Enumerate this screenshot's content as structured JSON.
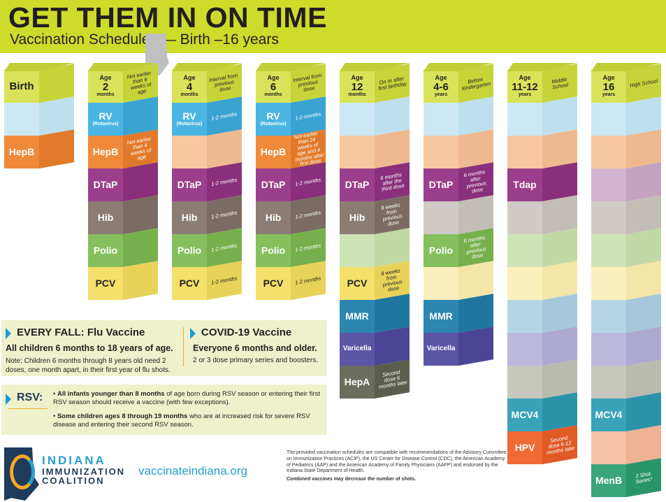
{
  "header": {
    "title": "GET THEM IN ON TIME",
    "subtitle": "Vaccination Schedules — Birth –16 years"
  },
  "columns": [
    {
      "head": {
        "lines": [
          "Birth"
        ],
        "note": ""
      },
      "cells": [
        {
          "label": "",
          "sub": "",
          "note": ""
        },
        {
          "label": "HepB",
          "sub": "",
          "note": ""
        }
      ]
    },
    {
      "head": {
        "lines": [
          "Age",
          "2",
          "months"
        ],
        "note": "Not earlier than 6 weeks of age"
      },
      "cells": [
        {
          "label": "RV",
          "sub": "(Rotavirus)",
          "note": ""
        },
        {
          "label": "HepB",
          "sub": "",
          "note": "Not earlier than 4 weeks of age"
        },
        {
          "label": "DTaP",
          "sub": "",
          "note": ""
        },
        {
          "label": "Hib",
          "sub": "",
          "note": ""
        },
        {
          "label": "Polio",
          "sub": "",
          "note": ""
        },
        {
          "label": "PCV",
          "sub": "",
          "note": ""
        }
      ]
    },
    {
      "head": {
        "lines": [
          "Age",
          "4",
          "months"
        ],
        "note": "Interval from previous dose"
      },
      "cells": [
        {
          "label": "RV",
          "sub": "(Rotavirus)",
          "note": "1-2 months"
        },
        {
          "label": "",
          "sub": "",
          "note": ""
        },
        {
          "label": "DTaP",
          "sub": "",
          "note": "1-2 months"
        },
        {
          "label": "Hib",
          "sub": "",
          "note": "1-2 months"
        },
        {
          "label": "Polio",
          "sub": "",
          "note": "1-2 months"
        },
        {
          "label": "PCV",
          "sub": "",
          "note": "1-2 months"
        }
      ]
    },
    {
      "head": {
        "lines": [
          "Age",
          "6",
          "months"
        ],
        "note": "Interval from previous dose"
      },
      "cells": [
        {
          "label": "RV",
          "sub": "(Rotavirus)",
          "note": "1-2 months"
        },
        {
          "label": "HepB",
          "sub": "",
          "note": "Not earlier than 24 weeks of age and 4 months after first dose"
        },
        {
          "label": "DTaP",
          "sub": "",
          "note": "1-2 months"
        },
        {
          "label": "Hib",
          "sub": "",
          "note": "1-2 months"
        },
        {
          "label": "Polio",
          "sub": "",
          "note": "1-2 months"
        },
        {
          "label": "PCV",
          "sub": "",
          "note": "1-2 months"
        }
      ]
    },
    {
      "head": {
        "lines": [
          "Age",
          "12",
          "months"
        ],
        "note": "On or after first birthday"
      },
      "cells": [
        {
          "label": "",
          "sub": "",
          "note": ""
        },
        {
          "label": "",
          "sub": "",
          "note": ""
        },
        {
          "label": "DTaP",
          "sub": "",
          "note": "6 months after the third dose"
        },
        {
          "label": "Hib",
          "sub": "",
          "note": "8 weeks from previous dose"
        },
        {
          "label": "",
          "sub": "",
          "note": ""
        },
        {
          "label": "PCV",
          "sub": "",
          "note": "8 weeks from previous dose"
        },
        {
          "label": "MMR",
          "sub": "",
          "note": ""
        },
        {
          "label": "Varicella",
          "sub": "",
          "note": ""
        },
        {
          "label": "HepA",
          "sub": "",
          "note": "Second dose 6 months later"
        }
      ]
    },
    {
      "head": {
        "lines": [
          "Age",
          "4-6",
          "years"
        ],
        "note": "Before kindergarten"
      },
      "cells": [
        {
          "label": "",
          "sub": "",
          "note": ""
        },
        {
          "label": "",
          "sub": "",
          "note": ""
        },
        {
          "label": "DTaP",
          "sub": "",
          "note": "6 months after previous dose"
        },
        {
          "label": "",
          "sub": "",
          "note": ""
        },
        {
          "label": "Polio",
          "sub": "",
          "note": "6 months after previous dose"
        },
        {
          "label": "",
          "sub": "",
          "note": ""
        },
        {
          "label": "MMR",
          "sub": "",
          "note": ""
        },
        {
          "label": "Varicella",
          "sub": "",
          "note": ""
        }
      ]
    },
    {
      "head": {
        "lines": [
          "Age",
          "11-12",
          "years"
        ],
        "note": "Middle School"
      },
      "cells": [
        {
          "label": "",
          "sub": "",
          "note": ""
        },
        {
          "label": "",
          "sub": "",
          "note": ""
        },
        {
          "label": "Tdap",
          "sub": "",
          "note": ""
        },
        {
          "label": "",
          "sub": "",
          "note": ""
        },
        {
          "label": "",
          "sub": "",
          "note": ""
        },
        {
          "label": "",
          "sub": "",
          "note": ""
        },
        {
          "label": "",
          "sub": "",
          "note": ""
        },
        {
          "label": "",
          "sub": "",
          "note": ""
        },
        {
          "label": "",
          "sub": "",
          "note": ""
        },
        {
          "label": "MCV4",
          "sub": "",
          "note": ""
        },
        {
          "label": "HPV",
          "sub": "",
          "note": "Second dose 6-12 months later"
        }
      ]
    },
    {
      "head": {
        "lines": [
          "Age",
          "16",
          "years"
        ],
        "note": "High School"
      },
      "cells": [
        {
          "label": "",
          "sub": "",
          "note": ""
        },
        {
          "label": "",
          "sub": "",
          "note": ""
        },
        {
          "label": "",
          "sub": "",
          "note": ""
        },
        {
          "label": "",
          "sub": "",
          "note": ""
        },
        {
          "label": "",
          "sub": "",
          "note": ""
        },
        {
          "label": "",
          "sub": "",
          "note": ""
        },
        {
          "label": "",
          "sub": "",
          "note": ""
        },
        {
          "label": "",
          "sub": "",
          "note": ""
        },
        {
          "label": "",
          "sub": "",
          "note": ""
        },
        {
          "label": "MCV4",
          "sub": "",
          "note": ""
        },
        {
          "label": "",
          "sub": "",
          "note": ""
        },
        {
          "label": "MenB",
          "sub": "",
          "note": "2 Shot Series*"
        }
      ]
    }
  ],
  "flu": {
    "heading": "EVERY FALL: Flu Vaccine",
    "bold": "All children 6 months to 18 years of age.",
    "note": "Note: Children 6 months through 8 years old need 2 doses, one month apart, in their first year of flu shots."
  },
  "covid": {
    "heading": "COVID-19 Vaccine",
    "bold": "Everyone 6 months and older.",
    "note": "2 or 3 dose primary series and boosters."
  },
  "rsv": {
    "label": "RSV:",
    "bullet1_bold": "All infants younger than 8 months",
    "bullet1_rest": " of age born during RSV season or entering their first RSV season should receive a vaccine (with few exceptions).",
    "bullet2_bold": "Some children ages 8 through 19 months",
    "bullet2_rest": " who are at increased risk for severe RSV disease and entering their second RSV season."
  },
  "footer": {
    "org_line1": "INDIANA",
    "org_line2": "IMMUNIZATION",
    "org_line3": "COALITION",
    "site": "vaccinateindiana.org",
    "disclaimer": "The provided vaccination schedules are compatible with recommendations of the Advisory Committee on Immunization Practices (ACIP), the US Center for Disease Control (CDC), the American Academy of Pediatrics (AAP) and the American Academy of Family Physicians (AAFP) and endorsed by the Indiana State Department of Health.",
    "combined": "Combined vaccines may decrease the number of shots."
  },
  "colors": {
    "header": "#cddb2b",
    "accent_blue": "#1d9ad6",
    "navy": "#1f3b5c",
    "orange": "#f6a821"
  }
}
